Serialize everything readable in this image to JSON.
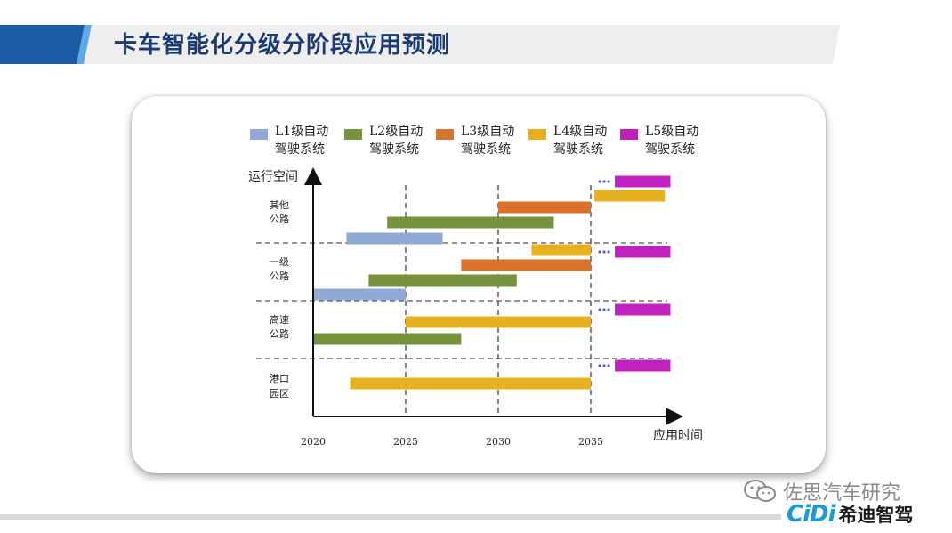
{
  "title": "卡车智能化分级分阶段应用预测",
  "watermark": "佐思汽车研究",
  "brand": {
    "logo": "CiDi",
    "name": "希迪智驾"
  },
  "colors": {
    "L1": "#8eaad5",
    "L2": "#76923c",
    "L3": "#d9722b",
    "L4": "#e6b020",
    "L5": "#c020c0",
    "title": "#1b3c72",
    "title_bar_blue": "#1b5ba6",
    "dots": "#5b5bc8"
  },
  "chart_data": {
    "type": "gantt",
    "xlabel": "应用时间",
    "ylabel": "运行空间",
    "x_ticks": [
      2020,
      2025,
      2030,
      2035
    ],
    "xlim": [
      2020,
      2040
    ],
    "legend": [
      {
        "key": "L1",
        "line1": "L1级自动",
        "line2": "驾驶系统"
      },
      {
        "key": "L2",
        "line1": "L2级自动",
        "line2": "驾驶系统"
      },
      {
        "key": "L3",
        "line1": "L3级自动",
        "line2": "驾驶系统"
      },
      {
        "key": "L4",
        "line1": "L4级自动",
        "line2": "驾驶系统"
      },
      {
        "key": "L5",
        "line1": "L5级自动",
        "line2": "驾驶系统"
      }
    ],
    "legend_position": "top",
    "categories": [
      {
        "line1": "其他",
        "line2": "公路",
        "bars": [
          {
            "level": "L5",
            "start": 2036.3,
            "end": 2039.3,
            "ongoing": true
          },
          {
            "level": "L4",
            "start": 2035.2,
            "end": 2039.0
          },
          {
            "level": "L3",
            "start": 2030.0,
            "end": 2035.0
          },
          {
            "level": "L2",
            "start": 2024.0,
            "end": 2033.0
          },
          {
            "level": "L1",
            "start": 2021.8,
            "end": 2027.0
          }
        ]
      },
      {
        "line1": "一级",
        "line2": "公路",
        "bars": [
          {
            "level": "L5",
            "start": 2036.3,
            "end": 2039.3,
            "ongoing": true
          },
          {
            "level": "L4",
            "start": 2031.8,
            "end": 2035.0
          },
          {
            "level": "L3",
            "start": 2028.0,
            "end": 2035.0
          },
          {
            "level": "L2",
            "start": 2023.0,
            "end": 2031.0
          },
          {
            "level": "L1",
            "start": 2020.0,
            "end": 2025.0
          }
        ]
      },
      {
        "line1": "高速",
        "line2": "公路",
        "bars": [
          {
            "level": "L5",
            "start": 2036.3,
            "end": 2039.3,
            "ongoing": true
          },
          {
            "level": "L4",
            "start": 2025.0,
            "end": 2035.0
          },
          {
            "level": "L2",
            "start": 2020.0,
            "end": 2028.0
          }
        ]
      },
      {
        "line1": "港口",
        "line2": "园区",
        "bars": [
          {
            "level": "L5",
            "start": 2036.3,
            "end": 2039.3,
            "ongoing": true
          },
          {
            "level": "L4",
            "start": 2022.0,
            "end": 2035.0
          }
        ]
      }
    ]
  }
}
